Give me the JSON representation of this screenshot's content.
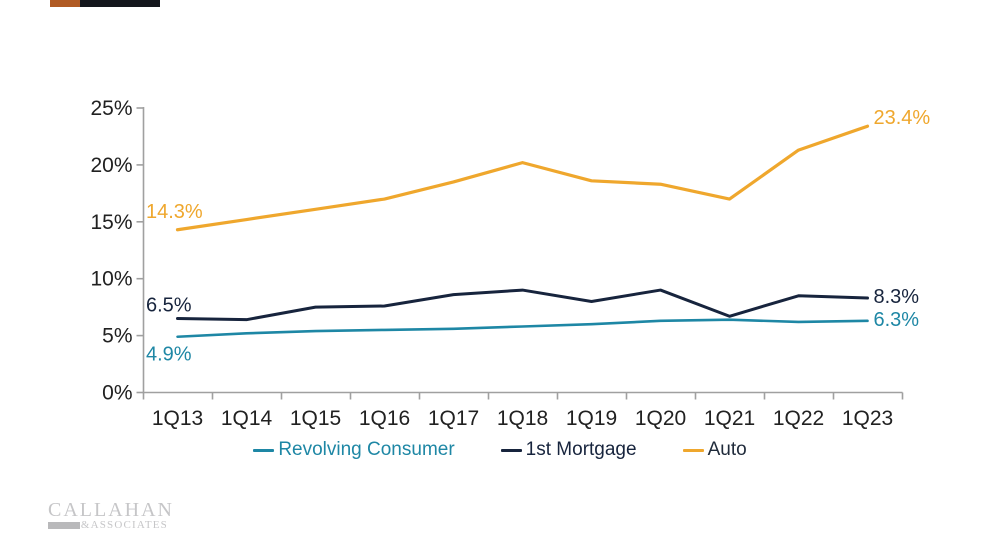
{
  "page": {
    "background": "#FFFFFF"
  },
  "decor_bar": {
    "bar_color": "#14161C",
    "accent_color": "#B05A23"
  },
  "chart_data": {
    "type": "line",
    "title": "",
    "categories": [
      "1Q13",
      "1Q14",
      "1Q15",
      "1Q16",
      "1Q17",
      "1Q18",
      "1Q19",
      "1Q20",
      "1Q21",
      "1Q22",
      "1Q23"
    ],
    "series": [
      {
        "name": "Revolving Consumer",
        "color": "#1E87A5",
        "legend_text_color": "#1E87A5",
        "values": [
          4.9,
          5.2,
          5.4,
          5.5,
          5.6,
          5.8,
          6.0,
          6.3,
          6.4,
          6.2,
          6.3
        ],
        "start_label": "4.9%",
        "end_label": "6.3%"
      },
      {
        "name": "1st Mortgage",
        "color": "#17243D",
        "legend_text_color": "#17243D",
        "values": [
          6.5,
          6.4,
          7.5,
          7.6,
          8.6,
          9.0,
          8.0,
          9.0,
          6.7,
          8.5,
          8.3
        ],
        "start_label": "6.5%",
        "end_label": "8.3%"
      },
      {
        "name": "Auto",
        "color": "#EFA72D",
        "legend_text_color": "#1F2A3A",
        "values": [
          14.3,
          15.2,
          16.1,
          17.0,
          18.5,
          20.2,
          18.6,
          18.3,
          17.0,
          21.3,
          23.4
        ],
        "start_label": "14.3%",
        "end_label": "23.4%"
      }
    ],
    "y_ticks": [
      "0%",
      "5%",
      "10%",
      "15%",
      "20%",
      "25%"
    ],
    "ylim": [
      0,
      25
    ],
    "grid": false,
    "legend_position": "bottom",
    "axis_color": "#A0A0A0",
    "tick_text_color": "#212121"
  },
  "logo": {
    "name": "CALLAHAN",
    "subname": "&ASSOCIATES",
    "color": "#C6C6C8",
    "bar_color": "#B9B9BB"
  }
}
